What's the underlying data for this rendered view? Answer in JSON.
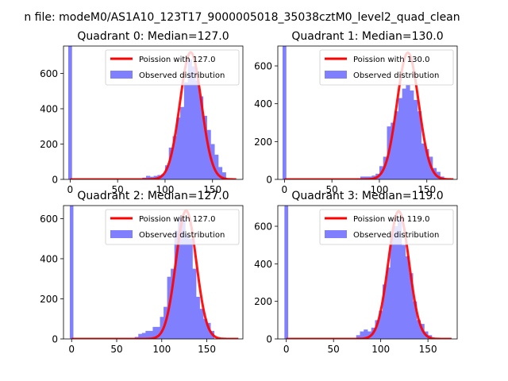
{
  "figure_title": "n file: modeM0/AS1A10_123T17_9000005018_35038cztM0_level2_quad_clean",
  "legend": {
    "observed_label": "Observed distribution"
  },
  "colors": {
    "poisson": "#ff0000",
    "hist": "#8080ff",
    "axes": "#000000"
  },
  "chart_data": [
    {
      "type": "bar",
      "title": "Quadrant 0: Median=127.0",
      "xlim": [
        -7,
        182
      ],
      "ylim": [
        0,
        755
      ],
      "xticks": [
        0,
        50,
        100,
        150
      ],
      "yticks": [
        0,
        200,
        400,
        600
      ],
      "poisson_label": "Poission with 127.0",
      "lambda": 127,
      "poisson_peak": 720,
      "curve_range": [
        0,
        175
      ],
      "spike": {
        "x": 0,
        "width": 4,
        "value": 755
      },
      "bins": [
        [
          78,
          10
        ],
        [
          82,
          20
        ],
        [
          86,
          15
        ],
        [
          90,
          20
        ],
        [
          94,
          25
        ],
        [
          98,
          30
        ],
        [
          102,
          80
        ],
        [
          106,
          180
        ],
        [
          110,
          245
        ],
        [
          114,
          350
        ],
        [
          118,
          410
        ],
        [
          122,
          550
        ],
        [
          126,
          680
        ],
        [
          130,
          640
        ],
        [
          134,
          560
        ],
        [
          138,
          470
        ],
        [
          142,
          360
        ],
        [
          146,
          280
        ],
        [
          150,
          200
        ],
        [
          154,
          140
        ],
        [
          158,
          70
        ],
        [
          162,
          40
        ]
      ]
    },
    {
      "type": "bar",
      "title": "Quadrant 1: Median=130.0",
      "xlim": [
        -7,
        182
      ],
      "ylim": [
        0,
        705
      ],
      "xticks": [
        0,
        50,
        100,
        150
      ],
      "yticks": [
        0,
        200,
        400,
        600
      ],
      "poisson_label": "Poission with 130.0",
      "lambda": 130,
      "poisson_peak": 670,
      "curve_range": [
        0,
        178
      ],
      "spike": {
        "x": 0,
        "width": 4,
        "value": 705
      },
      "bins": [
        [
          78,
          5
        ],
        [
          82,
          15
        ],
        [
          86,
          15
        ],
        [
          90,
          15
        ],
        [
          94,
          20
        ],
        [
          98,
          30
        ],
        [
          102,
          70
        ],
        [
          106,
          120
        ],
        [
          110,
          280
        ],
        [
          114,
          300
        ],
        [
          118,
          360
        ],
        [
          122,
          430
        ],
        [
          126,
          480
        ],
        [
          130,
          500
        ],
        [
          134,
          470
        ],
        [
          138,
          420
        ],
        [
          142,
          360
        ],
        [
          146,
          190
        ],
        [
          150,
          160
        ],
        [
          154,
          120
        ],
        [
          158,
          60
        ],
        [
          162,
          40
        ],
        [
          166,
          15
        ]
      ]
    },
    {
      "type": "bar",
      "title": "Quadrant 2: Median=127.0",
      "xlim": [
        -9,
        190
      ],
      "ylim": [
        0,
        665
      ],
      "xticks": [
        0,
        50,
        100,
        150
      ],
      "yticks": [
        0,
        200,
        400,
        600
      ],
      "poisson_label": "Poission with 127.0",
      "lambda": 127,
      "poisson_peak": 640,
      "curve_range": [
        0,
        185
      ],
      "spike": {
        "x": 0,
        "width": 4,
        "value": 665
      },
      "bins": [
        [
          72,
          10
        ],
        [
          76,
          25
        ],
        [
          80,
          30
        ],
        [
          84,
          40
        ],
        [
          88,
          40
        ],
        [
          92,
          60
        ],
        [
          96,
          60
        ],
        [
          100,
          110
        ],
        [
          104,
          160
        ],
        [
          108,
          310
        ],
        [
          112,
          350
        ],
        [
          116,
          540
        ],
        [
          120,
          610
        ],
        [
          124,
          600
        ],
        [
          128,
          520
        ],
        [
          132,
          500
        ],
        [
          136,
          350
        ],
        [
          140,
          210
        ],
        [
          144,
          150
        ],
        [
          148,
          100
        ],
        [
          152,
          80
        ],
        [
          156,
          40
        ]
      ]
    },
    {
      "type": "bar",
      "title": "Quadrant 3: Median=119.0",
      "xlim": [
        -9,
        181
      ],
      "ylim": [
        0,
        710
      ],
      "xticks": [
        0,
        50,
        100,
        150
      ],
      "yticks": [
        0,
        200,
        400,
        600
      ],
      "poisson_label": "Poission with 119.0",
      "lambda": 119,
      "poisson_peak": 680,
      "curve_range": [
        0,
        175
      ],
      "spike": {
        "x": 0,
        "width": 4,
        "value": 710
      },
      "bins": [
        [
          76,
          20
        ],
        [
          80,
          40
        ],
        [
          84,
          50
        ],
        [
          88,
          40
        ],
        [
          92,
          60
        ],
        [
          96,
          100
        ],
        [
          100,
          150
        ],
        [
          104,
          290
        ],
        [
          108,
          380
        ],
        [
          112,
          560
        ],
        [
          116,
          600
        ],
        [
          120,
          640
        ],
        [
          124,
          500
        ],
        [
          128,
          440
        ],
        [
          132,
          350
        ],
        [
          136,
          200
        ],
        [
          140,
          100
        ],
        [
          144,
          80
        ],
        [
          148,
          40
        ],
        [
          152,
          20
        ]
      ]
    }
  ]
}
